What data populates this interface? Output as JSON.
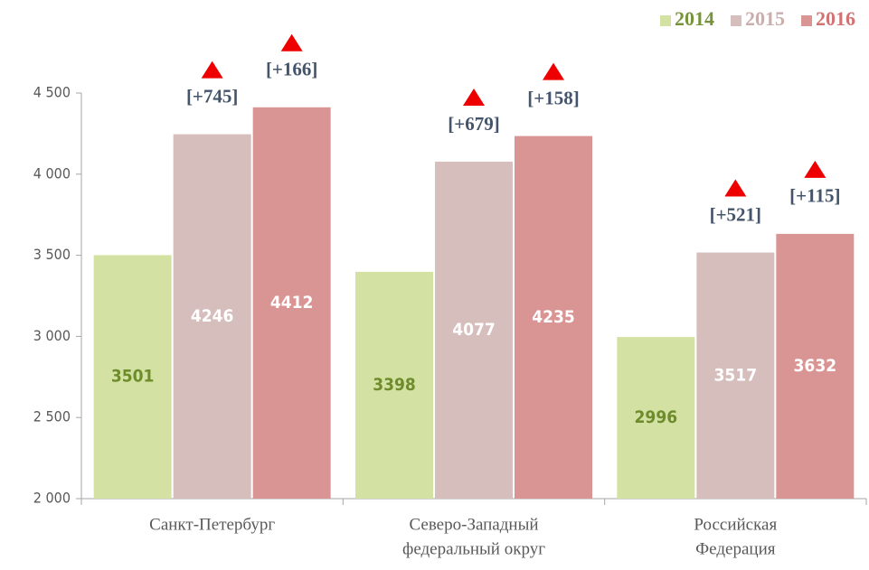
{
  "chart_data": {
    "type": "bar",
    "categories": [
      [
        "Санкт-Петербург"
      ],
      [
        "Северо-Западный",
        "федеральный округ"
      ],
      [
        "Российская",
        "Федерация"
      ]
    ],
    "series": [
      {
        "name": "2014",
        "color": "#d3e2a3",
        "legend_color": "#77933c",
        "label_color": "#6e8c2c",
        "values": [
          3501,
          3398,
          2996
        ]
      },
      {
        "name": "2015",
        "color": "#d6bebc",
        "legend_color": "#c9aeac",
        "label_color": "#ffffff",
        "values": [
          4246,
          4077,
          3517
        ],
        "change_labels": [
          "[+745]",
          "[+679]",
          "[+521]"
        ]
      },
      {
        "name": "2016",
        "color": "#d99594",
        "legend_color": "#d27272",
        "label_color": "#ffffff",
        "values": [
          4412,
          4235,
          3632
        ],
        "change_labels": [
          "[+166]",
          "[+158]",
          "[+115]"
        ]
      }
    ],
    "ylim": [
      2000,
      4500
    ],
    "yticks": [
      {
        "value": 2000,
        "label": "2 000"
      },
      {
        "value": 2500,
        "label": "2 500"
      },
      {
        "value": 3000,
        "label": "3 000"
      },
      {
        "value": 3500,
        "label": "3 500"
      },
      {
        "value": 4000,
        "label": "4 000"
      },
      {
        "value": 4500,
        "label": "4 500"
      }
    ],
    "legend": "top-right",
    "change_marker_color": "#ee0000",
    "change_label_color": "#44546a"
  }
}
